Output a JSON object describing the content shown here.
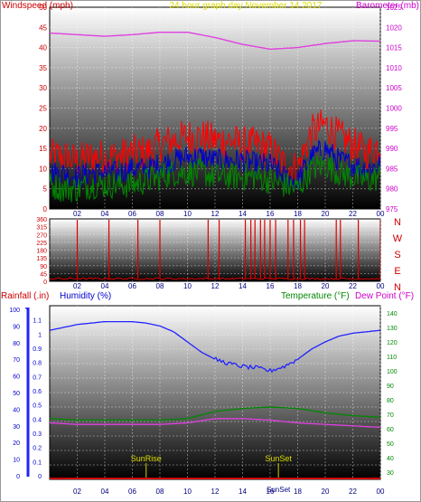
{
  "chart_data": [
    {
      "type": "line",
      "panel": "wind_baro",
      "header": {
        "left": "Windspeed (mph)",
        "center": "24 hour graph day   November 14 2017",
        "right": "Barometer (mb)"
      },
      "x_ticks": [
        "02",
        "04",
        "06",
        "08",
        "10",
        "12",
        "14",
        "16",
        "18",
        "20",
        "22",
        "00"
      ],
      "y_left": {
        "ticks": [
          0,
          5,
          10,
          15,
          20,
          25,
          30,
          35,
          40,
          45,
          50
        ],
        "range": [
          0,
          50
        ]
      },
      "y_right": {
        "ticks": [
          975,
          980,
          985,
          990,
          995,
          1000,
          1005,
          1010,
          1015,
          1020,
          1025
        ],
        "range": [
          975,
          1025
        ]
      },
      "x_range": [
        0,
        24
      ],
      "grid": true,
      "series": [
        {
          "name": "Barometer",
          "color": "#e040e0",
          "axis": "right",
          "x": [
            0,
            2,
            4,
            6,
            8,
            10,
            12,
            14,
            16,
            18,
            20,
            22,
            24
          ],
          "values": [
            1018.6,
            1018.2,
            1017.8,
            1018.2,
            1018.8,
            1018.8,
            1017.5,
            1015.8,
            1014.6,
            1015.0,
            1016.0,
            1016.7,
            1016.6
          ]
        },
        {
          "name": "Wind gust",
          "color": "#ff0000",
          "axis": "left",
          "x": [
            0,
            1,
            2,
            3,
            4,
            5,
            6,
            7,
            8,
            9,
            10,
            11,
            12,
            13,
            14,
            15,
            16,
            17,
            18,
            19,
            20,
            21,
            22,
            23,
            24
          ],
          "values": [
            13,
            13,
            12,
            13,
            13,
            13,
            14,
            14,
            16,
            17,
            18,
            18,
            17,
            17,
            16,
            16,
            15,
            11,
            10,
            19,
            21,
            18,
            16,
            14,
            16
          ]
        },
        {
          "name": "Wind average",
          "color": "#0000cc",
          "axis": "left",
          "x": [
            0,
            1,
            2,
            3,
            4,
            5,
            6,
            7,
            8,
            9,
            10,
            11,
            12,
            13,
            14,
            15,
            16,
            17,
            18,
            19,
            20,
            21,
            22,
            23,
            24
          ],
          "values": [
            9,
            9,
            8,
            9,
            9,
            9,
            10,
            10,
            11,
            12,
            13,
            13,
            12,
            12,
            12,
            11,
            11,
            8,
            7,
            13,
            15,
            12,
            11,
            10,
            11
          ]
        },
        {
          "name": "Wind speed",
          "color": "#008800",
          "axis": "left",
          "x": [
            0,
            1,
            2,
            3,
            4,
            5,
            6,
            7,
            8,
            9,
            10,
            11,
            12,
            13,
            14,
            15,
            16,
            17,
            18,
            19,
            20,
            21,
            22,
            23,
            24
          ],
          "values": [
            6,
            5,
            5,
            6,
            6,
            6,
            6,
            7,
            8,
            9,
            9,
            9,
            8,
            8,
            8,
            8,
            7,
            6,
            5,
            10,
            11,
            9,
            8,
            7,
            8
          ]
        }
      ]
    },
    {
      "type": "line",
      "panel": "wind_direction",
      "x_ticks": [
        "02",
        "04",
        "06",
        "08",
        "10",
        "12",
        "14",
        "16",
        "18",
        "20",
        "22",
        "00"
      ],
      "y_left": {
        "ticks": [
          0,
          45,
          90,
          135,
          180,
          225,
          270,
          315,
          360
        ],
        "range": [
          0,
          360
        ]
      },
      "compass": [
        "N",
        "W",
        "S",
        "E",
        "N"
      ],
      "x_range": [
        0,
        24
      ],
      "grid": true,
      "series": [
        {
          "name": "Wind direction",
          "color": "#dd0000",
          "baseline": 15,
          "spikes_x": [
            2.0,
            4.3,
            6.4,
            8.0,
            11.5,
            12.3,
            14.2,
            14.6,
            14.9,
            15.3,
            15.6,
            16.0,
            16.4,
            17.3,
            17.7,
            18.2,
            18.5,
            20.8,
            21.1,
            22.4,
            24.0
          ]
        }
      ]
    },
    {
      "type": "line",
      "panel": "rain_hum_temp",
      "header": {
        "rain": "Rainfall (.in)",
        "humidity": "Humidity (%)",
        "temperature": "Temperature (°F)",
        "dewpoint": "Dew Point (°F)"
      },
      "x_ticks": [
        "02",
        "04",
        "06",
        "08",
        "10",
        "12",
        "14",
        "16",
        "18",
        "20",
        "22",
        "00"
      ],
      "y_rain": {
        "ticks": [
          0,
          10,
          20,
          30,
          40,
          50,
          60,
          70,
          80,
          90,
          100
        ]
      },
      "y_humidity": {
        "ticks": [
          "0",
          "0.1",
          "0.2",
          "0.3",
          "0.4",
          "0.5",
          "0.6",
          "0.7",
          "0.8",
          "0.9",
          "1",
          "1.1"
        ],
        "range": [
          0,
          1.2
        ]
      },
      "y_right": {
        "ticks": [
          30,
          40,
          50,
          60,
          70,
          80,
          90,
          100,
          110,
          120,
          130,
          140
        ],
        "range": [
          25,
          145
        ]
      },
      "x_range": [
        0,
        24
      ],
      "events": [
        {
          "label": "SunRise",
          "x": 7.0
        },
        {
          "label": "SunSet",
          "x": 16.6
        }
      ],
      "sun_bottom_label": "SunSet",
      "grid": true,
      "series": [
        {
          "name": "Humidity",
          "color": "#2222ff",
          "axis": "right",
          "x": [
            0,
            1,
            2,
            3,
            4,
            5,
            6,
            7,
            8,
            9,
            10,
            11,
            12,
            13,
            14,
            15,
            16,
            17,
            18,
            19,
            20,
            21,
            22,
            23,
            24
          ],
          "values": [
            128,
            130,
            132,
            133,
            134,
            134,
            134,
            133,
            131,
            127,
            120,
            113,
            108,
            105,
            103,
            102,
            100,
            103,
            108,
            115,
            120,
            124,
            126,
            127,
            128
          ]
        },
        {
          "name": "Temperature",
          "color": "#008800",
          "axis": "right",
          "x": [
            0,
            2,
            4,
            6,
            8,
            10,
            12,
            14,
            16,
            18,
            20,
            22,
            24
          ],
          "values": [
            67,
            66,
            66,
            66,
            66,
            67,
            72,
            74,
            75,
            74,
            71,
            69,
            68
          ]
        },
        {
          "name": "Dew Point",
          "color": "#e040e0",
          "axis": "right",
          "x": [
            0,
            2,
            4,
            6,
            8,
            10,
            12,
            14,
            16,
            18,
            20,
            22,
            24
          ],
          "values": [
            64,
            63,
            63,
            63,
            63,
            64,
            67,
            67,
            66,
            64,
            63,
            62,
            61
          ]
        },
        {
          "name": "Rainfall",
          "color": "#cc0000",
          "axis": "rain",
          "x": [
            0,
            24
          ],
          "values": [
            0,
            0
          ]
        }
      ]
    }
  ]
}
